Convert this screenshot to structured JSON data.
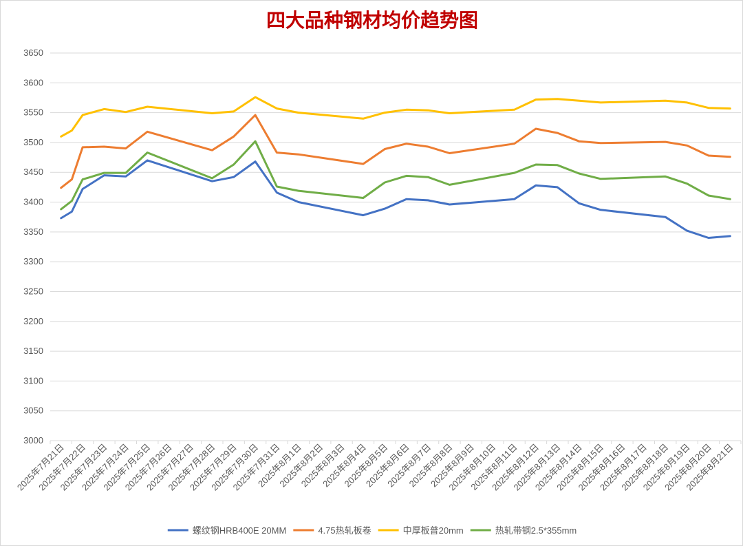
{
  "chart_data": {
    "type": "line",
    "title": "四大品种钢材均价趋势图",
    "title_color": "#c00000",
    "xlabel": "",
    "ylabel": "",
    "ylim": [
      3000,
      3650
    ],
    "ytick_step": 50,
    "grid": true,
    "legend_position": "bottom",
    "categories": [
      "2025年7月21日",
      "2025年7月22日",
      "2025年7月23日",
      "2025年7月24日",
      "2025年7月25日",
      "2025年7月26日",
      "2025年7月27日",
      "2025年7月28日",
      "2025年7月29日",
      "2025年7月30日",
      "2025年7月31日",
      "2025年8月1日",
      "2025年8月2日",
      "2025年8月3日",
      "2025年8月4日",
      "2025年8月5日",
      "2025年8月6日",
      "2025年8月7日",
      "2025年8月8日",
      "2025年8月9日",
      "2025年8月10日",
      "2025年8月11日",
      "2025年8月12日",
      "2025年8月13日",
      "2025年8月14日",
      "2025年8月15日",
      "2025年8月16日",
      "2025年8月17日",
      "2025年8月18日",
      "2025年8月19日",
      "2025年8月20日",
      "2025年8月21日"
    ],
    "series": [
      {
        "name": "螺纹钢HRB400E 20MM",
        "color": "#4472c4",
        "points": [
          [
            21,
            3373
          ],
          [
            21.5,
            3384
          ],
          [
            22,
            3422
          ],
          [
            23,
            3445
          ],
          [
            24,
            3443
          ],
          [
            25,
            3470
          ],
          [
            28,
            3435
          ],
          [
            29,
            3442
          ],
          [
            30,
            3468
          ],
          [
            31,
            3416
          ],
          [
            32,
            3400
          ],
          [
            35,
            3378
          ],
          [
            36,
            3389
          ],
          [
            37,
            3405
          ],
          [
            38,
            3403
          ],
          [
            39,
            3396
          ],
          [
            42,
            3405
          ],
          [
            43,
            3428
          ],
          [
            44,
            3425
          ],
          [
            45,
            3398
          ],
          [
            46,
            3387
          ],
          [
            49,
            3375
          ],
          [
            50,
            3352
          ],
          [
            51,
            3340
          ],
          [
            52,
            3343
          ]
        ]
      },
      {
        "name": "4.75热轧板卷",
        "color": "#ed7d31",
        "points": [
          [
            21,
            3424
          ],
          [
            21.5,
            3438
          ],
          [
            22,
            3492
          ],
          [
            23,
            3493
          ],
          [
            24,
            3490
          ],
          [
            25,
            3518
          ],
          [
            28,
            3487
          ],
          [
            29,
            3510
          ],
          [
            30,
            3546
          ],
          [
            31,
            3483
          ],
          [
            32,
            3480
          ],
          [
            35,
            3464
          ],
          [
            36,
            3489
          ],
          [
            37,
            3498
          ],
          [
            38,
            3493
          ],
          [
            39,
            3482
          ],
          [
            42,
            3498
          ],
          [
            43,
            3523
          ],
          [
            44,
            3516
          ],
          [
            45,
            3502
          ],
          [
            46,
            3499
          ],
          [
            49,
            3501
          ],
          [
            50,
            3495
          ],
          [
            51,
            3478
          ],
          [
            52,
            3476
          ]
        ]
      },
      {
        "name": "中厚板普20mm",
        "color": "#ffc000",
        "points": [
          [
            21,
            3510
          ],
          [
            21.5,
            3520
          ],
          [
            22,
            3546
          ],
          [
            23,
            3556
          ],
          [
            24,
            3551
          ],
          [
            25,
            3560
          ],
          [
            28,
            3549
          ],
          [
            29,
            3552
          ],
          [
            30,
            3576
          ],
          [
            31,
            3557
          ],
          [
            32,
            3550
          ],
          [
            35,
            3540
          ],
          [
            36,
            3550
          ],
          [
            37,
            3555
          ],
          [
            38,
            3554
          ],
          [
            39,
            3549
          ],
          [
            42,
            3555
          ],
          [
            43,
            3572
          ],
          [
            44,
            3573
          ],
          [
            45,
            3570
          ],
          [
            46,
            3567
          ],
          [
            49,
            3570
          ],
          [
            50,
            3567
          ],
          [
            51,
            3558
          ],
          [
            52,
            3557
          ]
        ]
      },
      {
        "name": "热轧带钢2.5*355mm",
        "color": "#70ad47",
        "points": [
          [
            21,
            3388
          ],
          [
            21.5,
            3402
          ],
          [
            22,
            3438
          ],
          [
            23,
            3449
          ],
          [
            24,
            3449
          ],
          [
            25,
            3483
          ],
          [
            28,
            3440
          ],
          [
            29,
            3463
          ],
          [
            30,
            3502
          ],
          [
            31,
            3426
          ],
          [
            32,
            3419
          ],
          [
            35,
            3407
          ],
          [
            36,
            3433
          ],
          [
            37,
            3444
          ],
          [
            38,
            3442
          ],
          [
            39,
            3429
          ],
          [
            42,
            3449
          ],
          [
            43,
            3463
          ],
          [
            44,
            3462
          ],
          [
            45,
            3448
          ],
          [
            46,
            3439
          ],
          [
            49,
            3443
          ],
          [
            50,
            3431
          ],
          [
            51,
            3411
          ],
          [
            52,
            3405
          ]
        ]
      }
    ]
  }
}
